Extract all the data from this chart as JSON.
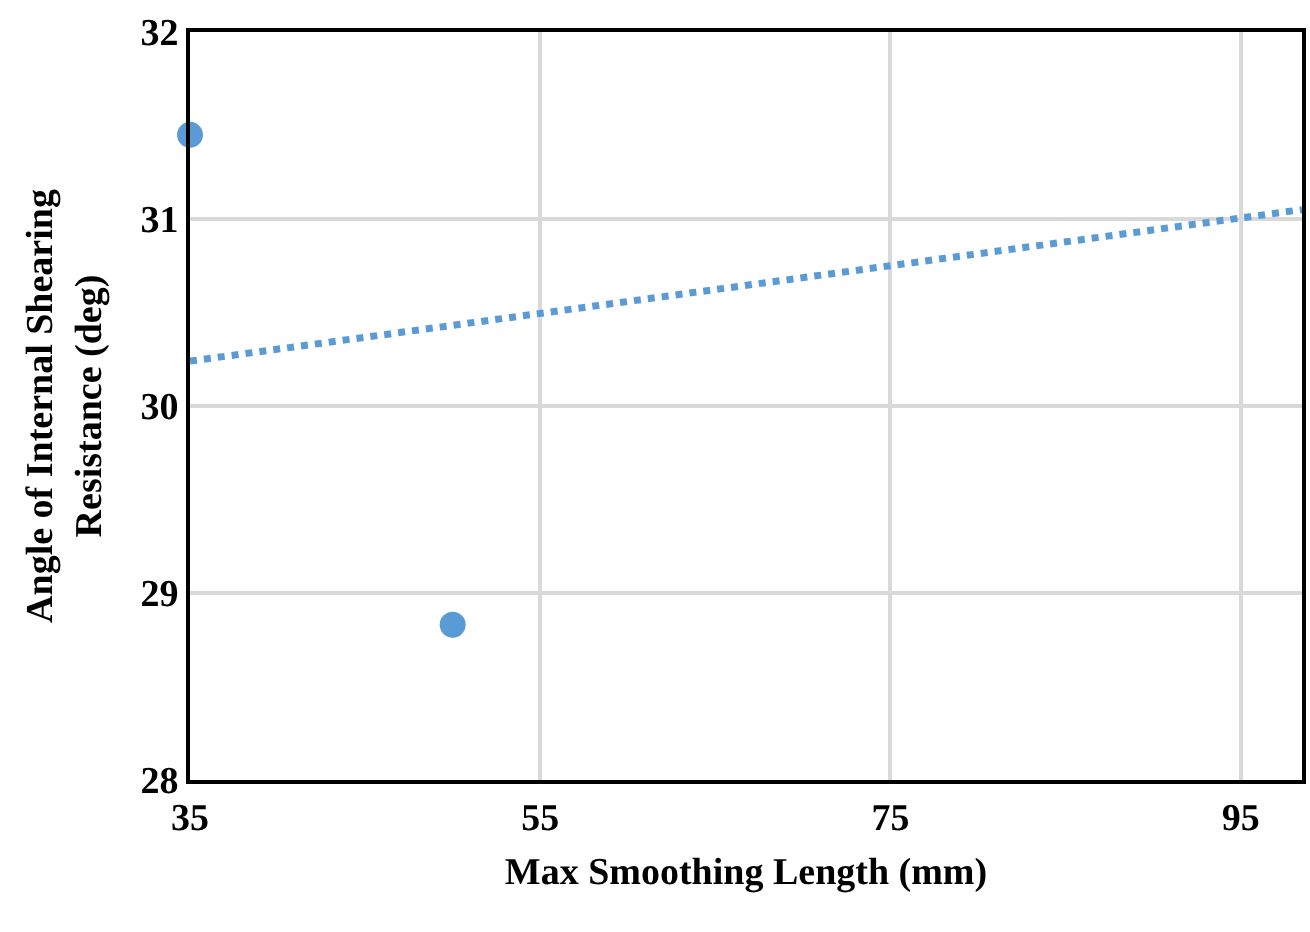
{
  "chart_data": {
    "type": "scatter",
    "xlabel": "Max Smoothing Length (mm)",
    "ylabel": "Angle of Internal Shearing\nResistance (deg)",
    "series": [
      {
        "color": "#5b9bd5",
        "marker": "circle",
        "x": [
          35,
          50
        ],
        "values": [
          31.45,
          28.83
        ]
      },
      {
        "type": "line",
        "color": "#5b9bd5",
        "marker": "none",
        "line_style": "dotted",
        "x": [
          35,
          98.5
        ],
        "values": [
          30.24,
          31.05
        ]
      }
    ],
    "xlim": [
      35,
      98.5
    ],
    "xticks": [
      35,
      55,
      75,
      95
    ],
    "ylim": [
      28,
      32
    ],
    "yticks": [
      28,
      29,
      30,
      31,
      32
    ],
    "grid": true
  }
}
